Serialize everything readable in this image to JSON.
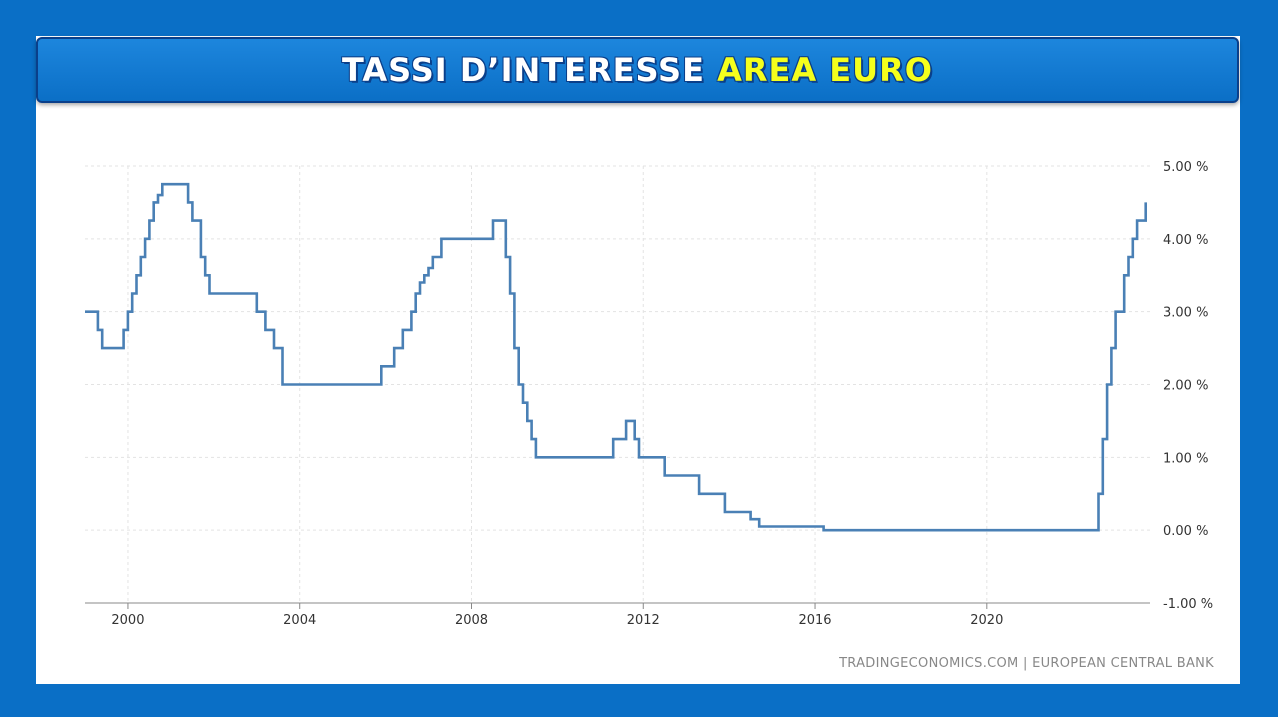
{
  "header": {
    "title_main": "TASSI D’INTERESSE",
    "title_accent": "AREA EURO"
  },
  "colors": {
    "background": "#0a6fc6",
    "banner": "#1479d2",
    "title_main": "#ffffff",
    "title_accent": "#f5ff1c",
    "line": "#4a80b5",
    "grid": "#e3e3e3"
  },
  "source": "TRADINGECONOMICS.COM | EUROPEAN CENTRAL BANK",
  "chart_data": {
    "type": "line",
    "title": "",
    "xlabel": "",
    "ylabel": "",
    "step": true,
    "xlim": [
      1999.0,
      2023.8
    ],
    "ylim": [
      -1,
      5
    ],
    "grid": true,
    "legend": "none",
    "x_ticks": [
      {
        "value": 2000,
        "label": "2000"
      },
      {
        "value": 2004,
        "label": "2004"
      },
      {
        "value": 2008,
        "label": "2008"
      },
      {
        "value": 2012,
        "label": "2012"
      },
      {
        "value": 2016,
        "label": "2016"
      },
      {
        "value": 2020,
        "label": "2020"
      }
    ],
    "y_ticks": [
      {
        "value": 5,
        "label": "5.00 %"
      },
      {
        "value": 4,
        "label": "4.00 %"
      },
      {
        "value": 3,
        "label": "3.00 %"
      },
      {
        "value": 2,
        "label": "2.00 %"
      },
      {
        "value": 1,
        "label": "1.00 %"
      },
      {
        "value": 0,
        "label": "0.00 %"
      },
      {
        "value": -1,
        "label": "-1.00 %"
      }
    ],
    "series": [
      {
        "x": [
          1999.0,
          1999.3,
          1999.4,
          1999.9,
          2000.0,
          2000.1,
          2000.2,
          2000.3,
          2000.4,
          2000.5,
          2000.6,
          2000.7,
          2000.8,
          2000.9,
          2001.4,
          2001.5,
          2001.7,
          2001.8,
          2001.9,
          2002.0,
          2003.0,
          2003.2,
          2003.4,
          2003.6,
          2005.9,
          2006.2,
          2006.4,
          2006.6,
          2006.7,
          2006.8,
          2006.9,
          2007.0,
          2007.1,
          2007.2,
          2007.3,
          2007.5,
          2007.7,
          2008.5,
          2008.8,
          2008.9,
          2009.0,
          2009.1,
          2009.2,
          2009.3,
          2009.4,
          2009.5,
          2011.3,
          2011.6,
          2011.8,
          2011.9,
          2012.5,
          2013.3,
          2013.9,
          2014.5,
          2014.7,
          2016.2,
          2022.6,
          2022.7,
          2022.8,
          2022.9,
          2023.0,
          2023.2,
          2023.3,
          2023.4,
          2023.5,
          2023.6,
          2023.7
        ],
        "y": [
          3.0,
          2.75,
          2.5,
          2.75,
          3.0,
          3.25,
          3.5,
          3.75,
          4.0,
          4.25,
          4.5,
          4.6,
          4.75,
          4.75,
          4.5,
          4.25,
          3.75,
          3.5,
          3.25,
          3.25,
          3.0,
          2.75,
          2.5,
          2.0,
          2.25,
          2.5,
          2.75,
          3.0,
          3.25,
          3.4,
          3.5,
          3.6,
          3.75,
          3.75,
          4.0,
          4.0,
          4.0,
          4.25,
          3.75,
          3.25,
          2.5,
          2.0,
          1.75,
          1.5,
          1.25,
          1.0,
          1.25,
          1.5,
          1.25,
          1.0,
          0.75,
          0.5,
          0.25,
          0.15,
          0.05,
          0.0,
          0.5,
          1.25,
          2.0,
          2.5,
          3.0,
          3.5,
          3.75,
          4.0,
          4.25,
          4.25,
          4.5
        ]
      }
    ]
  }
}
